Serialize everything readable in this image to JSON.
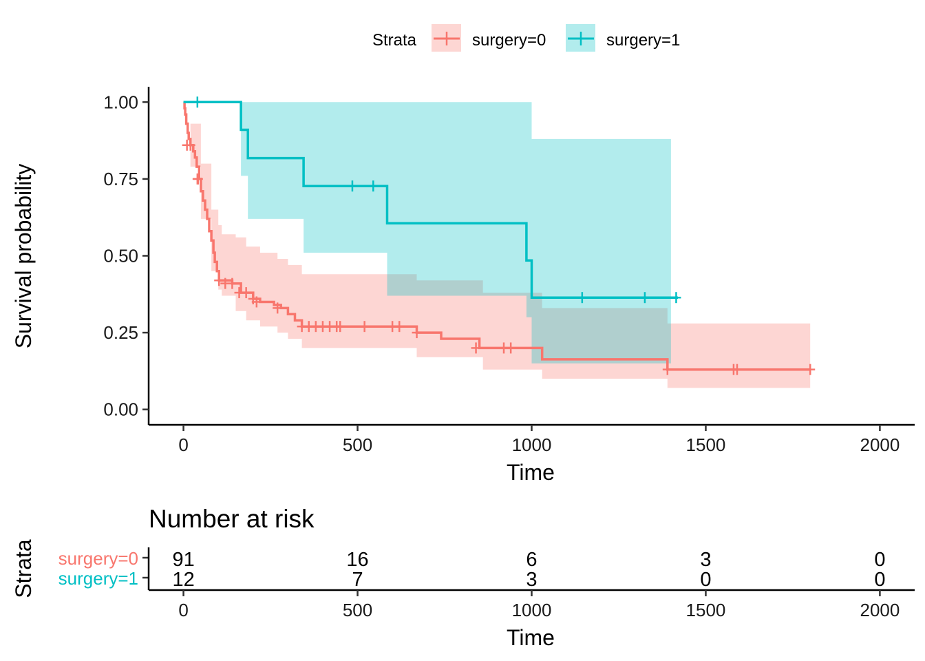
{
  "chart_data": [
    {
      "type": "line",
      "subtype": "kaplan-meier step curves with confidence bands",
      "legend": {
        "title": "Strata",
        "placement": "top",
        "entries": [
          "surgery=0",
          "surgery=1"
        ]
      },
      "xlabel": "Time",
      "ylabel": "Survival probability",
      "xlim": [
        -100,
        2100
      ],
      "ylim": [
        -0.05,
        1.05
      ],
      "x_ticks": [
        0,
        500,
        1000,
        1500,
        2000
      ],
      "x_tick_labels": [
        "0",
        "500",
        "1000",
        "1500",
        "2000"
      ],
      "y_ticks": [
        0,
        0.25,
        0.5,
        0.75,
        1.0
      ],
      "y_tick_labels": [
        "0.00",
        "0.25",
        "0.50",
        "0.75",
        "1.00"
      ],
      "grid": false,
      "series": [
        {
          "name": "surgery=0",
          "color": "#F8766D",
          "steps": [
            [
              0,
              1.0
            ],
            [
              3,
              0.98
            ],
            [
              5,
              0.96
            ],
            [
              8,
              0.93
            ],
            [
              12,
              0.9
            ],
            [
              15,
              0.88
            ],
            [
              20,
              0.86
            ],
            [
              28,
              0.84
            ],
            [
              33,
              0.82
            ],
            [
              38,
              0.79
            ],
            [
              45,
              0.75
            ],
            [
              50,
              0.71
            ],
            [
              56,
              0.68
            ],
            [
              62,
              0.65
            ],
            [
              68,
              0.62
            ],
            [
              74,
              0.58
            ],
            [
              80,
              0.55
            ],
            [
              86,
              0.51
            ],
            [
              90,
              0.48
            ],
            [
              96,
              0.45
            ],
            [
              102,
              0.42
            ],
            [
              140,
              0.41
            ],
            [
              165,
              0.38
            ],
            [
              200,
              0.36
            ],
            [
              220,
              0.35
            ],
            [
              260,
              0.34
            ],
            [
              280,
              0.33
            ],
            [
              300,
              0.31
            ],
            [
              320,
              0.29
            ],
            [
              340,
              0.27
            ],
            [
              670,
              0.25
            ],
            [
              740,
              0.23
            ],
            [
              850,
              0.2
            ],
            [
              1030,
              0.163
            ],
            [
              1390,
              0.13
            ],
            [
              1800,
              0.13
            ]
          ],
          "ci_upper": [
            [
              0,
              1.0
            ],
            [
              20,
              0.93
            ],
            [
              50,
              0.8
            ],
            [
              80,
              0.65
            ],
            [
              100,
              0.6
            ],
            [
              110,
              0.57
            ],
            [
              150,
              0.56
            ],
            [
              180,
              0.53
            ],
            [
              220,
              0.51
            ],
            [
              270,
              0.49
            ],
            [
              300,
              0.47
            ],
            [
              340,
              0.44
            ],
            [
              670,
              0.42
            ],
            [
              860,
              0.38
            ],
            [
              1030,
              0.33
            ],
            [
              1390,
              0.28
            ],
            [
              1800,
              0.28
            ]
          ],
          "ci_lower": [
            [
              0,
              1.0
            ],
            [
              20,
              0.79
            ],
            [
              50,
              0.62
            ],
            [
              80,
              0.45
            ],
            [
              100,
              0.39
            ],
            [
              110,
              0.37
            ],
            [
              150,
              0.32
            ],
            [
              180,
              0.29
            ],
            [
              220,
              0.27
            ],
            [
              270,
              0.25
            ],
            [
              300,
              0.23
            ],
            [
              340,
              0.2
            ],
            [
              670,
              0.17
            ],
            [
              860,
              0.13
            ],
            [
              1030,
              0.1
            ],
            [
              1390,
              0.07
            ],
            [
              1800,
              0.07
            ]
          ],
          "censor_times": [
            10,
            20,
            40,
            42,
            102,
            120,
            140,
            160,
            180,
            200,
            210,
            270,
            340,
            360,
            380,
            400,
            420,
            440,
            450,
            520,
            600,
            620,
            670,
            840,
            920,
            940,
            1390,
            1580,
            1590,
            1800
          ],
          "censor_values": [
            0.86,
            0.86,
            0.75,
            0.75,
            0.42,
            0.41,
            0.41,
            0.38,
            0.38,
            0.36,
            0.35,
            0.33,
            0.27,
            0.27,
            0.27,
            0.27,
            0.27,
            0.27,
            0.27,
            0.27,
            0.27,
            0.27,
            0.25,
            0.2,
            0.2,
            0.2,
            0.13,
            0.13,
            0.13,
            0.13
          ]
        },
        {
          "name": "surgery=1",
          "color": "#00BFC4",
          "steps": [
            [
              0,
              1.0
            ],
            [
              165,
              0.91
            ],
            [
              185,
              0.818
            ],
            [
              345,
              0.727
            ],
            [
              585,
              0.606
            ],
            [
              985,
              0.485
            ],
            [
              1000,
              0.364
            ],
            [
              1420,
              0.364
            ]
          ],
          "ci_upper": [
            [
              0,
              1.0
            ],
            [
              165,
              1.0
            ],
            [
              985,
              1.0
            ],
            [
              1000,
              0.88
            ],
            [
              1400,
              0.88
            ]
          ],
          "ci_lower": [
            [
              0,
              1.0
            ],
            [
              165,
              0.76
            ],
            [
              185,
              0.62
            ],
            [
              345,
              0.51
            ],
            [
              585,
              0.37
            ],
            [
              985,
              0.3
            ],
            [
              1000,
              0.15
            ],
            [
              1400,
              0.15
            ]
          ],
          "censor_times": [
            40,
            485,
            545,
            1145,
            1325,
            1415
          ],
          "censor_values": [
            1.0,
            0.727,
            0.727,
            0.364,
            0.364,
            0.364
          ]
        }
      ]
    },
    {
      "type": "table",
      "title": "Number at risk",
      "ylabel": "Strata",
      "xlabel": "Time",
      "xlim": [
        -100,
        2100
      ],
      "x_ticks": [
        0,
        500,
        1000,
        1500,
        2000
      ],
      "x_tick_labels": [
        "0",
        "500",
        "1000",
        "1500",
        "2000"
      ],
      "rows": [
        {
          "label": "surgery=0",
          "color": "#F8766D",
          "values": [
            "91",
            "16",
            "6",
            "3",
            "0"
          ]
        },
        {
          "label": "surgery=1",
          "color": "#00BFC4",
          "values": [
            "12",
            "7",
            "3",
            "0",
            "0"
          ]
        }
      ]
    }
  ]
}
